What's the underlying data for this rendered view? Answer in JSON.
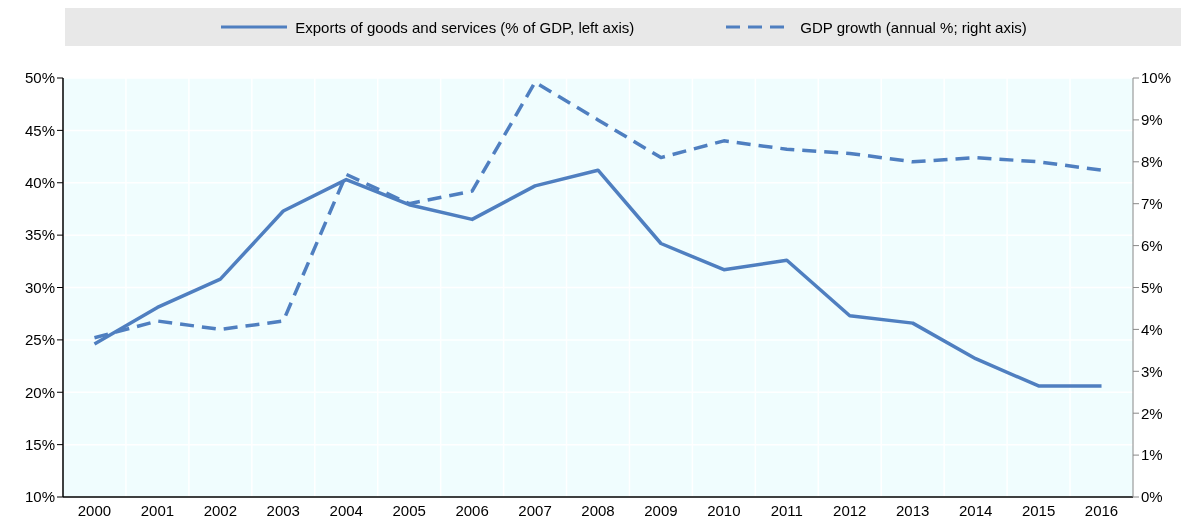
{
  "chart_data": {
    "type": "line",
    "categories": [
      "2000",
      "2001",
      "2002",
      "2003",
      "2004",
      "2005",
      "2006",
      "2007",
      "2008",
      "2009",
      "2010",
      "2011",
      "2012",
      "2013",
      "2014",
      "2015",
      "2016"
    ],
    "series": [
      {
        "name": "Exports of goods and services (% of GDP, left axis)",
        "color": "#4f7fc0",
        "line_style": "solid",
        "values": [
          24.6,
          28.1,
          30.8,
          37.3,
          40.3,
          37.9,
          36.5,
          39.7,
          41.2,
          34.2,
          31.7,
          32.6,
          27.3,
          26.6,
          23.2,
          20.6,
          20.6
        ]
      },
      {
        "name": "GDP growth (annual %; right axis)",
        "color": "#4f7fc0",
        "line_style": "dashed",
        "axis": "y2",
        "values": [
          3.8,
          4.2,
          4.0,
          4.2,
          7.7,
          7.0,
          7.3,
          9.9,
          9.0,
          8.1,
          8.5,
          8.3,
          8.2,
          8.0,
          8.1,
          8.0,
          7.8
        ]
      }
    ],
    "ylim": [
      10,
      50
    ],
    "yticks": [
      {
        "value": 10,
        "label": "10%"
      },
      {
        "value": 15,
        "label": "15%"
      },
      {
        "value": 20,
        "label": "20%"
      },
      {
        "value": 25,
        "label": "25%"
      },
      {
        "value": 30,
        "label": "30%"
      },
      {
        "value": 35,
        "label": "35%"
      },
      {
        "value": 40,
        "label": "40%"
      },
      {
        "value": 45,
        "label": "45%"
      },
      {
        "value": 50,
        "label": "50%"
      }
    ],
    "y2lim": [
      0,
      10
    ],
    "y2ticks": [
      {
        "value": 0,
        "label": "0%"
      },
      {
        "value": 1,
        "label": "1%"
      },
      {
        "value": 2,
        "label": "2%"
      },
      {
        "value": 3,
        "label": "3%"
      },
      {
        "value": 4,
        "label": "4%"
      },
      {
        "value": 5,
        "label": "5%"
      },
      {
        "value": 6,
        "label": "6%"
      },
      {
        "value": 7,
        "label": "7%"
      },
      {
        "value": 8,
        "label": "8%"
      },
      {
        "value": 9,
        "label": "9%"
      },
      {
        "value": 10,
        "label": "10%"
      }
    ],
    "grid": true,
    "legend": "top",
    "marker": "none"
  }
}
